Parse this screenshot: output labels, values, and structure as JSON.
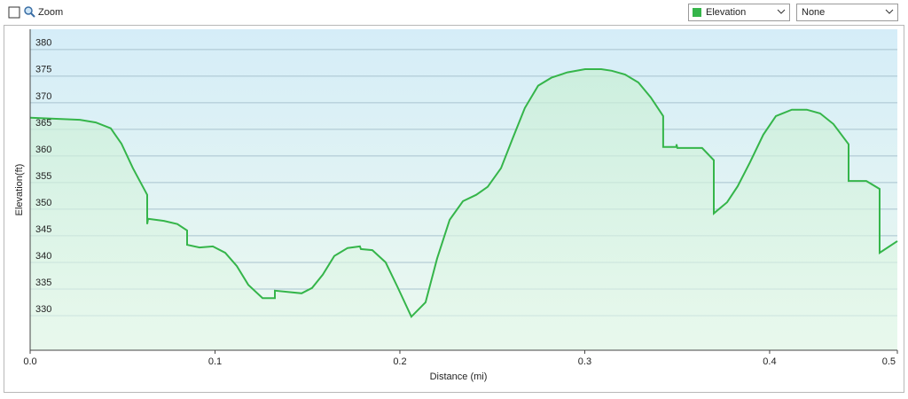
{
  "toolbar": {
    "zoom_label": "Zoom",
    "secondary_select": "None"
  },
  "chart_data": {
    "type": "area",
    "xlabel": "Distance (mi)",
    "ylabel": "Elevation(ft)",
    "x": [
      0,
      0.0269,
      0.0355,
      0.0436,
      0.0494,
      0.0556,
      0.0633,
      0.0633,
      0.0638,
      0.0724,
      0.0796,
      0.0849,
      0.0849,
      0.0916,
      0.0988,
      0.1055,
      0.1118,
      0.118,
      0.1257,
      0.1324,
      0.1324,
      0.1468,
      0.1525,
      0.1583,
      0.1645,
      0.1717,
      0.1784,
      0.1789,
      0.1851,
      0.1923,
      0.1986,
      0.2062,
      0.2139,
      0.2201,
      0.2269,
      0.2341,
      0.2413,
      0.2475,
      0.2547,
      0.2609,
      0.2676,
      0.2748,
      0.282,
      0.2906,
      0.3002,
      0.3089,
      0.3146,
      0.3218,
      0.329,
      0.3357,
      0.3424,
      0.3424,
      0.3496,
      0.3496,
      0.3501,
      0.3635,
      0.3698,
      0.3698,
      0.377,
      0.3827,
      0.3894,
      0.3966,
      0.4034,
      0.412,
      0.4201,
      0.4273,
      0.4345,
      0.4427,
      0.4427,
      0.4523,
      0.4595,
      0.4595,
      0.4691
    ],
    "series": [
      {
        "name": "Elevation",
        "color": "#35b54a",
        "values": [
          367.2,
          366.8,
          366.3,
          365.2,
          362.3,
          357.7,
          352.7,
          347.2,
          348.2,
          347.8,
          347.2,
          346,
          343.3,
          342.8,
          343,
          341.8,
          339.3,
          335.8,
          333.3,
          333.3,
          334.7,
          334.2,
          335.2,
          337.7,
          341.2,
          342.7,
          343,
          342.5,
          342.3,
          340,
          335.5,
          329.8,
          332.5,
          340.7,
          348,
          351.5,
          352.7,
          354.2,
          357.7,
          363.2,
          369,
          373.2,
          374.7,
          375.7,
          376.3,
          376.3,
          376,
          375.3,
          373.8,
          371,
          367.5,
          361.7,
          361.7,
          362.2,
          361.5,
          361.5,
          359.2,
          349.2,
          351.3,
          354.3,
          358.8,
          364,
          367.5,
          368.7,
          368.7,
          368,
          366,
          362.2,
          355.3,
          355.3,
          353.8,
          341.8,
          344
        ]
      }
    ],
    "xlim": [
      0,
      0.4691
    ],
    "ylim": [
      323.5,
      383.8
    ],
    "xticks": [
      {
        "value": 0,
        "label": "0.0"
      },
      0.1,
      0.2,
      0.3,
      0.4,
      {
        "value": 0.4691,
        "label": "0.5"
      }
    ],
    "yticks": [
      330,
      335,
      340,
      345,
      350,
      355,
      360,
      365,
      370,
      375,
      380
    ],
    "grid": true
  }
}
